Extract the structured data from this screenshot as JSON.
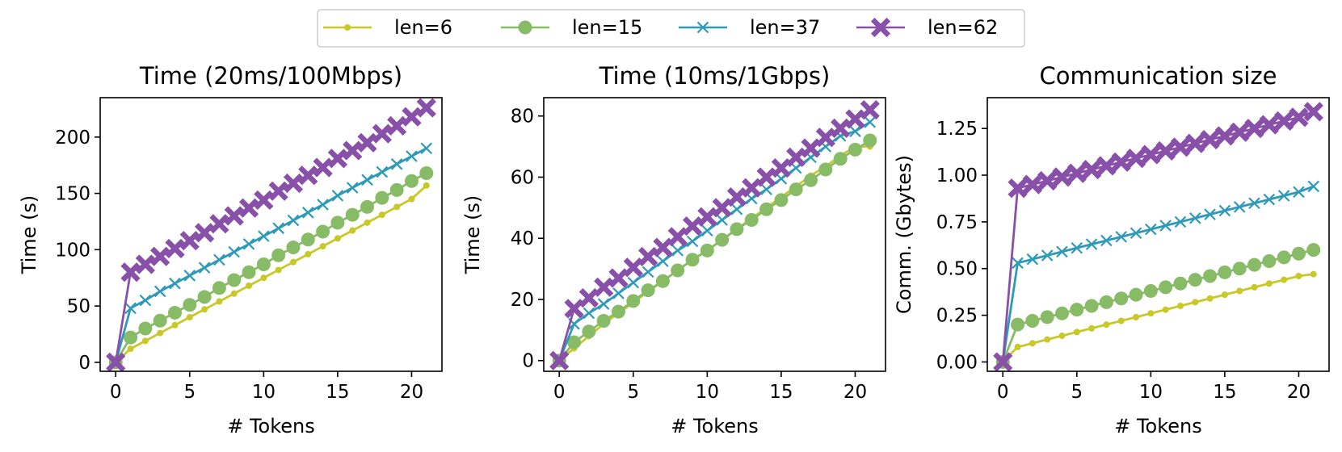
{
  "legend": {
    "entries": [
      {
        "label": "len=6",
        "color": "#C8C828",
        "marker": "point"
      },
      {
        "label": "len=15",
        "color": "#88BB66",
        "marker": "circle"
      },
      {
        "label": "len=37",
        "color": "#2E9AB8",
        "marker": "x"
      },
      {
        "label": "len=62",
        "color": "#8850A8",
        "marker": "filled-x"
      }
    ],
    "placement": "top-center"
  },
  "chart_data": [
    {
      "type": "line",
      "title": "Time (20ms/100Mbps)",
      "xlabel": "# Tokens",
      "ylabel": "Time (s)",
      "xlim": [
        -1.05,
        22.05
      ],
      "ylim": [
        -8,
        235
      ],
      "xticks": [
        0,
        5,
        10,
        15,
        20
      ],
      "yticks": [
        0,
        50,
        100,
        150,
        200
      ],
      "xtick_labels": [
        "0",
        "5",
        "10",
        "15",
        "20"
      ],
      "ytick_labels": [
        "0",
        "50",
        "100",
        "150",
        "200"
      ],
      "grid": false,
      "x": [
        0,
        1,
        2,
        3,
        4,
        5,
        6,
        7,
        8,
        9,
        10,
        11,
        12,
        13,
        14,
        15,
        16,
        17,
        18,
        19,
        20,
        21
      ],
      "series": [
        {
          "name": "len=6",
          "values": [
            0,
            12,
            19,
            26,
            33,
            40,
            47,
            54,
            61,
            68,
            75,
            82,
            89,
            96,
            103,
            110,
            117,
            124,
            131,
            138,
            145,
            157
          ]
        },
        {
          "name": "len=15",
          "values": [
            0,
            22,
            30,
            37,
            44,
            51,
            58,
            66,
            73,
            80,
            87,
            95,
            102,
            109,
            116,
            124,
            131,
            138,
            146,
            153,
            161,
            168
          ]
        },
        {
          "name": "len=37",
          "values": [
            0,
            48,
            55,
            63,
            70,
            77,
            84,
            91,
            98,
            105,
            112,
            119,
            126,
            133,
            140,
            148,
            155,
            162,
            169,
            176,
            183,
            190
          ]
        },
        {
          "name": "len=62",
          "values": [
            0,
            80,
            87,
            94,
            101,
            108,
            115,
            123,
            130,
            137,
            144,
            152,
            159,
            166,
            173,
            181,
            188,
            195,
            203,
            210,
            218,
            226
          ]
        }
      ]
    },
    {
      "type": "line",
      "title": "Time (10ms/1Gbps)",
      "xlabel": "# Tokens",
      "ylabel": "Time (s)",
      "xlim": [
        -1.05,
        22.05
      ],
      "ylim": [
        -3.5,
        86
      ],
      "xticks": [
        0,
        5,
        10,
        15,
        20
      ],
      "yticks": [
        0,
        20,
        40,
        60,
        80
      ],
      "xtick_labels": [
        "0",
        "5",
        "10",
        "15",
        "20"
      ],
      "ytick_labels": [
        "0",
        "20",
        "40",
        "60",
        "80"
      ],
      "grid": false,
      "x": [
        0,
        1,
        2,
        3,
        4,
        5,
        6,
        7,
        8,
        9,
        10,
        11,
        12,
        13,
        14,
        15,
        16,
        17,
        18,
        19,
        20,
        21
      ],
      "series": [
        {
          "name": "len=6",
          "values": [
            0,
            4,
            8,
            12,
            15.5,
            19,
            22.5,
            26,
            29.5,
            33,
            36,
            39.5,
            43,
            46.5,
            50,
            53.5,
            57,
            60.5,
            63.5,
            67,
            70,
            70
          ]
        },
        {
          "name": "len=15",
          "values": [
            0,
            6,
            9.5,
            13,
            16,
            19.5,
            23,
            26,
            29.5,
            33,
            36,
            39.5,
            43,
            46,
            49.5,
            52.5,
            56,
            59,
            62.5,
            66,
            69,
            72
          ]
        },
        {
          "name": "len=37",
          "values": [
            0,
            12,
            15.5,
            18.5,
            22,
            25.5,
            29,
            32.5,
            36,
            39,
            42.5,
            46,
            49.5,
            53,
            56,
            59.5,
            63,
            66.5,
            70,
            73.5,
            75,
            78
          ]
        },
        {
          "name": "len=62",
          "values": [
            0,
            17,
            20.5,
            24,
            27,
            30.5,
            34,
            37,
            40.5,
            44,
            47,
            50,
            53.5,
            56.5,
            60,
            63,
            66.5,
            69.5,
            73,
            76,
            79,
            82
          ]
        }
      ]
    },
    {
      "type": "line",
      "title": "Communication size",
      "xlabel": "# Tokens",
      "ylabel": "Comm. (Gbytes)",
      "xlim": [
        -1.05,
        22.05
      ],
      "ylim": [
        -0.05,
        1.415
      ],
      "xticks": [
        0,
        5,
        10,
        15,
        20
      ],
      "yticks": [
        0.0,
        0.25,
        0.5,
        0.75,
        1.0,
        1.25
      ],
      "xtick_labels": [
        "0",
        "5",
        "10",
        "15",
        "20"
      ],
      "ytick_labels": [
        "0.00",
        "0.25",
        "0.50",
        "0.75",
        "1.00",
        "1.25"
      ],
      "grid": false,
      "x": [
        0,
        1,
        2,
        3,
        4,
        5,
        6,
        7,
        8,
        9,
        10,
        11,
        12,
        13,
        14,
        15,
        16,
        17,
        18,
        19,
        20,
        21
      ],
      "series": [
        {
          "name": "len=6",
          "values": [
            0,
            0.08,
            0.1,
            0.12,
            0.14,
            0.16,
            0.18,
            0.2,
            0.22,
            0.24,
            0.26,
            0.28,
            0.3,
            0.32,
            0.34,
            0.36,
            0.38,
            0.4,
            0.42,
            0.44,
            0.46,
            0.47
          ]
        },
        {
          "name": "len=15",
          "values": [
            0,
            0.2,
            0.22,
            0.24,
            0.26,
            0.28,
            0.3,
            0.32,
            0.34,
            0.36,
            0.38,
            0.4,
            0.42,
            0.44,
            0.46,
            0.48,
            0.5,
            0.52,
            0.54,
            0.56,
            0.58,
            0.6
          ]
        },
        {
          "name": "len=37",
          "values": [
            0,
            0.53,
            0.55,
            0.57,
            0.59,
            0.61,
            0.63,
            0.65,
            0.67,
            0.69,
            0.71,
            0.73,
            0.75,
            0.77,
            0.79,
            0.81,
            0.83,
            0.85,
            0.87,
            0.89,
            0.91,
            0.94
          ]
        },
        {
          "name": "len=62",
          "values": [
            0,
            0.93,
            0.95,
            0.97,
            0.99,
            1.01,
            1.03,
            1.05,
            1.07,
            1.09,
            1.11,
            1.13,
            1.15,
            1.17,
            1.19,
            1.21,
            1.23,
            1.25,
            1.27,
            1.29,
            1.31,
            1.34
          ]
        }
      ]
    }
  ]
}
